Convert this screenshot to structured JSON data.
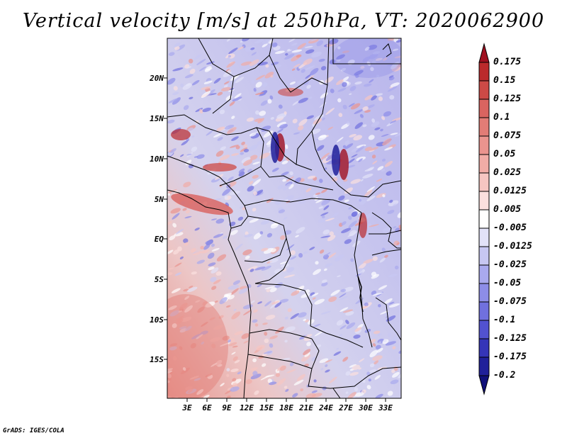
{
  "map": {
    "title": "Vertical velocity [m/s] at 250hPa, VT: 2020062900",
    "variable": "Vertical velocity",
    "units": "m/s",
    "level": "250hPa",
    "valid_time": "2020062900",
    "region": "Central Africa",
    "lat_labels": [
      "20N",
      "15N",
      "10N",
      "5N",
      "EQ",
      "5S",
      "10S",
      "15S"
    ],
    "lon_labels": [
      "3E",
      "6E",
      "9E",
      "12E",
      "15E",
      "18E",
      "21E",
      "24E",
      "27E",
      "30E",
      "33E"
    ],
    "colorbar": {
      "levels": [
        "0.175",
        "0.15",
        "0.125",
        "0.1",
        "0.075",
        "0.05",
        "0.025",
        "0.0125",
        "0.005",
        "-0.005",
        "-0.0125",
        "-0.025",
        "-0.05",
        "-0.075",
        "-0.1",
        "-0.125",
        "-0.175",
        "-0.2"
      ],
      "colors": [
        "#a01020",
        "#bb2a2c",
        "#cd4a46",
        "#d96460",
        "#e27c76",
        "#ea948e",
        "#f1aca6",
        "#f6c6c2",
        "#fbe0de",
        "#ffffff",
        "#e2e2f8",
        "#c7c7f2",
        "#a9a9ee",
        "#8d8de8",
        "#7070de",
        "#5252d0",
        "#3535b8",
        "#20209a",
        "#10107a"
      ]
    },
    "credit": "GrADS: IGES/COLA"
  }
}
